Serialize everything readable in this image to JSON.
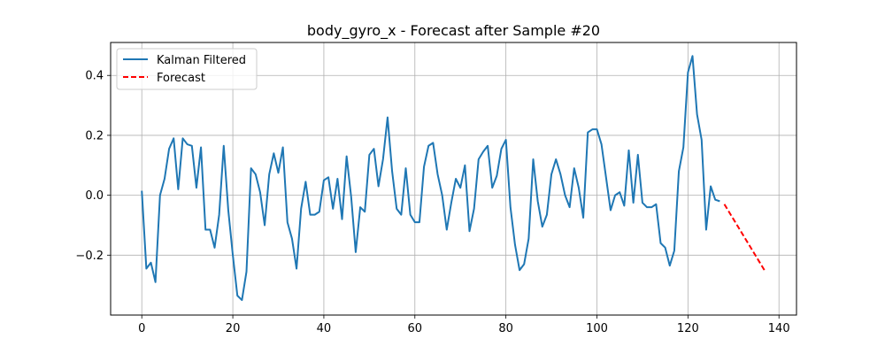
{
  "chart_data": {
    "type": "line",
    "title": "body_gyro_x - Forecast after Sample #20",
    "xlabel": "",
    "ylabel": "",
    "xlim": [
      -6.85,
      143.85
    ],
    "ylim": [
      -0.4,
      0.51
    ],
    "grid": true,
    "legend_position": "top-left",
    "x_ticks": [
      0,
      20,
      40,
      60,
      80,
      100,
      120,
      140
    ],
    "y_ticks": [
      -0.2,
      0.0,
      0.2,
      0.4
    ],
    "x_tick_labels": [
      "0",
      "20",
      "40",
      "60",
      "80",
      "100",
      "120",
      "140"
    ],
    "y_tick_labels": [
      "−0.2",
      "0.0",
      "0.2",
      "0.4"
    ],
    "series": [
      {
        "name": "Kalman Filtered",
        "color": "#1f77b4",
        "style": "solid",
        "x_start": 0,
        "values": [
          0.015,
          -0.245,
          -0.225,
          -0.29,
          0.0,
          0.055,
          0.155,
          0.19,
          0.02,
          0.19,
          0.17,
          0.165,
          0.025,
          0.16,
          -0.115,
          -0.115,
          -0.175,
          -0.065,
          0.165,
          -0.05,
          -0.2,
          -0.335,
          -0.35,
          -0.255,
          0.09,
          0.07,
          0.01,
          -0.1,
          0.07,
          0.14,
          0.075,
          0.16,
          -0.09,
          -0.145,
          -0.245,
          -0.045,
          0.045,
          -0.065,
          -0.065,
          -0.055,
          0.05,
          0.06,
          -0.045,
          0.055,
          -0.08,
          0.13,
          -0.005,
          -0.19,
          -0.04,
          -0.055,
          0.135,
          0.155,
          0.03,
          0.12,
          0.26,
          0.08,
          -0.045,
          -0.065,
          0.09,
          -0.065,
          -0.09,
          -0.09,
          0.095,
          0.165,
          0.175,
          0.07,
          0.0,
          -0.115,
          -0.025,
          0.055,
          0.025,
          0.1,
          -0.12,
          -0.045,
          0.12,
          0.145,
          0.165,
          0.025,
          0.065,
          0.155,
          0.185,
          -0.04,
          -0.165,
          -0.25,
          -0.23,
          -0.145,
          0.12,
          -0.02,
          -0.105,
          -0.065,
          0.07,
          0.12,
          0.07,
          0.0,
          -0.04,
          0.09,
          0.025,
          -0.075,
          0.21,
          0.22,
          0.22,
          0.17,
          0.06,
          -0.05,
          0.0,
          0.01,
          -0.035,
          0.15,
          -0.025,
          0.135,
          -0.025,
          -0.04,
          -0.04,
          -0.03,
          -0.16,
          -0.175,
          -0.235,
          -0.185,
          0.08,
          0.16,
          0.41,
          0.465,
          0.27,
          0.185,
          -0.115,
          0.03,
          -0.015,
          -0.02
        ]
      },
      {
        "name": "Forecast",
        "color": "#ff0000",
        "style": "dashed",
        "x_start": 128,
        "values": [
          -0.03,
          -0.055,
          -0.08,
          -0.105,
          -0.13,
          -0.155,
          -0.18,
          -0.205,
          -0.23,
          -0.255
        ]
      }
    ]
  }
}
